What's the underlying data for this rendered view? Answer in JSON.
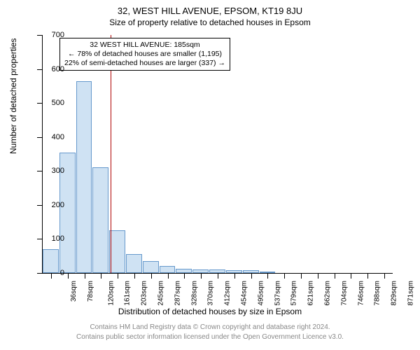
{
  "title": "32, WEST HILL AVENUE, EPSOM, KT19 8JU",
  "subtitle": "Size of property relative to detached houses in Epsom",
  "ylabel": "Number of detached properties",
  "xlabel": "Distribution of detached houses by size in Epsom",
  "footer1": "Contains HM Land Registry data © Crown copyright and database right 2024.",
  "footer2": "Contains public sector information licensed under the Open Government Licence v3.0.",
  "chart": {
    "type": "bar",
    "y_axis": {
      "min": 0,
      "max": 700,
      "step": 100
    },
    "xtick_labels": [
      "36sqm",
      "78sqm",
      "120sqm",
      "161sqm",
      "203sqm",
      "245sqm",
      "287sqm",
      "328sqm",
      "370sqm",
      "412sqm",
      "454sqm",
      "495sqm",
      "537sqm",
      "579sqm",
      "621sqm",
      "662sqm",
      "704sqm",
      "746sqm",
      "788sqm",
      "829sqm",
      "871sqm"
    ],
    "bars": [
      70,
      355,
      565,
      310,
      125,
      55,
      35,
      20,
      12,
      10,
      10,
      8,
      8,
      5,
      0,
      0,
      0,
      0,
      0,
      0,
      0
    ],
    "bar_fill": "#cfe2f3",
    "bar_border": "#6699cc",
    "marker_value": 185,
    "x_min": 36,
    "x_max": 871,
    "marker_color": "#b00000",
    "annotation": {
      "line1": "32 WEST HILL AVENUE: 185sqm",
      "line2": "← 78% of detached houses are smaller (1,195)",
      "line3": "22% of semi-detached houses are larger (337) →"
    }
  }
}
